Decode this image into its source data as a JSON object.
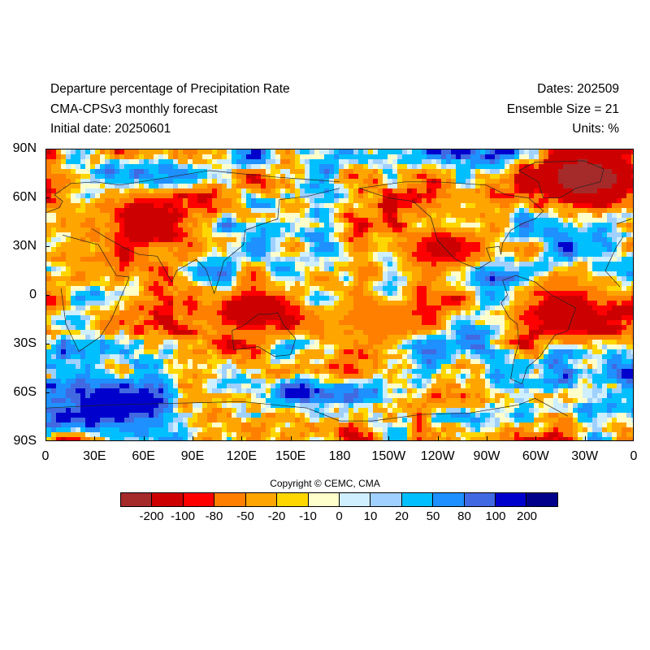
{
  "header": {
    "title": "Departure percentage of Precipitation Rate",
    "model": "CMA-CPSv3 monthly forecast",
    "initial_date": "Initial date: 20250601",
    "dates": "Dates: 202509",
    "ensemble": "Ensemble Size = 21",
    "units": "Units: %"
  },
  "map": {
    "projection": "cylindrical-equidistant",
    "lon_range": [
      0,
      360
    ],
    "lat_range": [
      -90,
      90
    ],
    "lat_ticks": [
      "90N",
      "60N",
      "30N",
      "0",
      "30S",
      "60S",
      "90S"
    ],
    "lon_ticks": [
      "0",
      "30E",
      "60E",
      "90E",
      "120E",
      "150E",
      "180",
      "150W",
      "120W",
      "90W",
      "60W",
      "30W",
      "0"
    ],
    "regions_notable": [
      {
        "lon": 60,
        "lat": 45,
        "category": -100
      },
      {
        "lon": 40,
        "lat": -68,
        "category": 100
      },
      {
        "lon": 200,
        "lat": -15,
        "category": -50
      },
      {
        "lon": 320,
        "lat": -10,
        "category": -100
      },
      {
        "lon": 330,
        "lat": 72,
        "category": -200
      },
      {
        "lon": 125,
        "lat": -10,
        "category": -100
      },
      {
        "lon": 245,
        "lat": 30,
        "category": -80
      }
    ]
  },
  "copyright": "Copyright © CEMC, CMA",
  "colorbar": {
    "colors": [
      "#a52a2a",
      "#cd0000",
      "#ff0000",
      "#ff7f00",
      "#ffa500",
      "#ffd700",
      "#ffffcc",
      "#cfefff",
      "#a0d0ff",
      "#00bfff",
      "#1e90ff",
      "#4169e1",
      "#0000cd",
      "#00008b"
    ],
    "labels": [
      "-200",
      "-100",
      "-80",
      "-50",
      "-20",
      "-10",
      "0",
      "10",
      "20",
      "50",
      "80",
      "100",
      "200"
    ]
  }
}
